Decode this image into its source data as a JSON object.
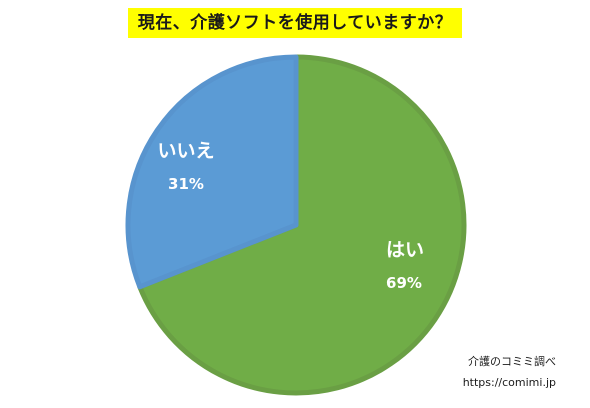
{
  "chart_data": {
    "type": "pie",
    "title": "現在、介護ソフトを使用していますか？",
    "categories": [
      "はい",
      "いいえ"
    ],
    "values": [
      69,
      31
    ],
    "value_labels": [
      "69%",
      "31%"
    ],
    "colors": [
      "#70ad47",
      "#5b9bd5"
    ],
    "edge_colors": [
      "#6a9f44",
      "#5894ce"
    ],
    "start": "12 o'clock, clockwise",
    "legend": "none"
  },
  "source": {
    "name": "介護のコミミ調べ",
    "url": "https://comimi.jp"
  }
}
